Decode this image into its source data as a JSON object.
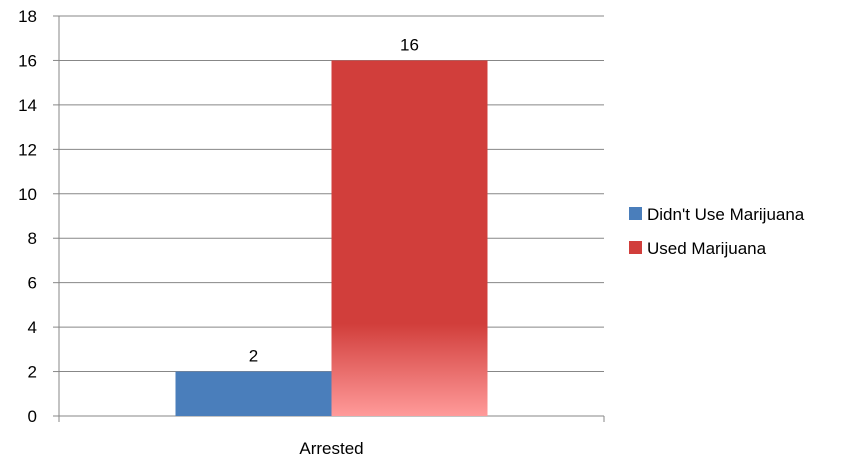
{
  "chart_data": {
    "type": "bar",
    "categories": [
      "Arrested"
    ],
    "series": [
      {
        "name": "Didn't Use Marijuana",
        "values": [
          2
        ],
        "color": "#4A7EBB"
      },
      {
        "name": "Used Marijuana",
        "values": [
          16
        ],
        "color": "#D13E3B"
      }
    ],
    "title": "",
    "xlabel": "",
    "ylabel": "",
    "ylim": [
      0,
      18
    ],
    "yticks": [
      "0",
      "2",
      "4",
      "6",
      "8",
      "10",
      "12",
      "14",
      "16",
      "18"
    ],
    "data_labels": [
      "2",
      "16"
    ],
    "grid": true,
    "legend_position": "right"
  }
}
